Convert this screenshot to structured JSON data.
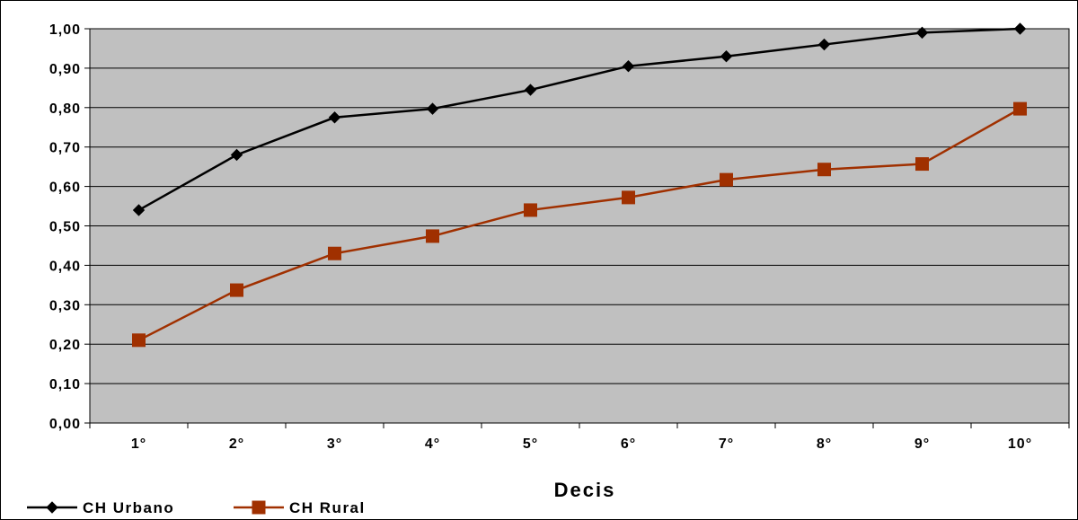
{
  "chart_data": {
    "type": "line",
    "xlabel": "Decis",
    "ylabel": "",
    "title": "",
    "categories": [
      "1°",
      "2°",
      "3°",
      "4°",
      "5°",
      "6°",
      "7°",
      "8°",
      "9°",
      "10°"
    ],
    "y_ticks": [
      "0,00",
      "0,10",
      "0,20",
      "0,30",
      "0,40",
      "0,50",
      "0,60",
      "0,70",
      "0,80",
      "0,90",
      "1,00"
    ],
    "ylim": [
      0,
      1
    ],
    "grid": true,
    "legend_position": "bottom-left",
    "plot_background": "#c0c0c0",
    "series": [
      {
        "name": "CH Urbano",
        "color": "#000000",
        "marker": "diamond",
        "values": [
          0.54,
          0.68,
          0.775,
          0.797,
          0.845,
          0.905,
          0.93,
          0.96,
          0.99,
          1.0
        ]
      },
      {
        "name": "CH Rural",
        "color": "#a03000",
        "marker": "square",
        "values": [
          0.21,
          0.337,
          0.43,
          0.474,
          0.54,
          0.572,
          0.617,
          0.643,
          0.657,
          0.797
        ]
      }
    ]
  }
}
